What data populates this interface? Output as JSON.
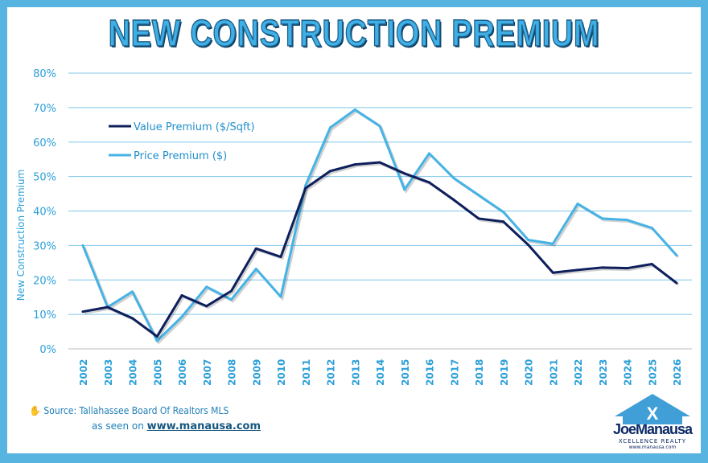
{
  "chart_data": {
    "type": "line",
    "title": "NEW CONSTRUCTION PREMIUM",
    "ylabel": "New Construction Premium",
    "xlabel": "",
    "ylim": [
      0,
      80
    ],
    "yticks": [
      "0%",
      "10%",
      "20%",
      "30%",
      "40%",
      "50%",
      "60%",
      "70%",
      "80%"
    ],
    "grid": true,
    "legend_placement": "top-left",
    "categories": [
      "2002",
      "2003",
      "2004",
      "2005",
      "2006",
      "2007",
      "2008",
      "2009",
      "2010",
      "2011",
      "2012",
      "2013",
      "2014",
      "2015",
      "2016",
      "2017",
      "2018",
      "2019",
      "2020",
      "2021",
      "2022",
      "2023",
      "2024",
      "2025",
      "2026"
    ],
    "series": [
      {
        "name": "Value Premium ($/Sqft)",
        "color": "#0d1f5c",
        "values": [
          10.8,
          12.1,
          8.9,
          3.6,
          15.5,
          12.4,
          16.8,
          29.1,
          26.7,
          46.6,
          51.6,
          53.5,
          54.1,
          50.9,
          48.3,
          43.2,
          37.8,
          36.9,
          30.2,
          22.1,
          22.9,
          23.6,
          23.4,
          24.6,
          19.1
        ]
      },
      {
        "name": "Price Premium ($)",
        "color": "#45b3e6",
        "values": [
          30.0,
          12.1,
          16.6,
          2.3,
          9.3,
          18.0,
          14.3,
          23.2,
          15.1,
          47.4,
          64.2,
          69.4,
          64.7,
          46.2,
          56.7,
          49.5,
          44.6,
          39.7,
          31.6,
          30.5,
          42.1,
          37.8,
          37.4,
          35.1,
          27.1
        ]
      }
    ]
  },
  "footer": {
    "source": "Source: Tallahassee Board Of Realtors MLS",
    "seen_on": "as seen on",
    "link": "www.manausa.com"
  },
  "logo": {
    "name": "JoeManausa",
    "tagline": "XCELLENCE REALTY",
    "url": "www.manausa.com"
  },
  "colors": {
    "frame": "#57b3e0",
    "grid": "#7fc6ea",
    "axis_text": "#2b9fd9"
  }
}
